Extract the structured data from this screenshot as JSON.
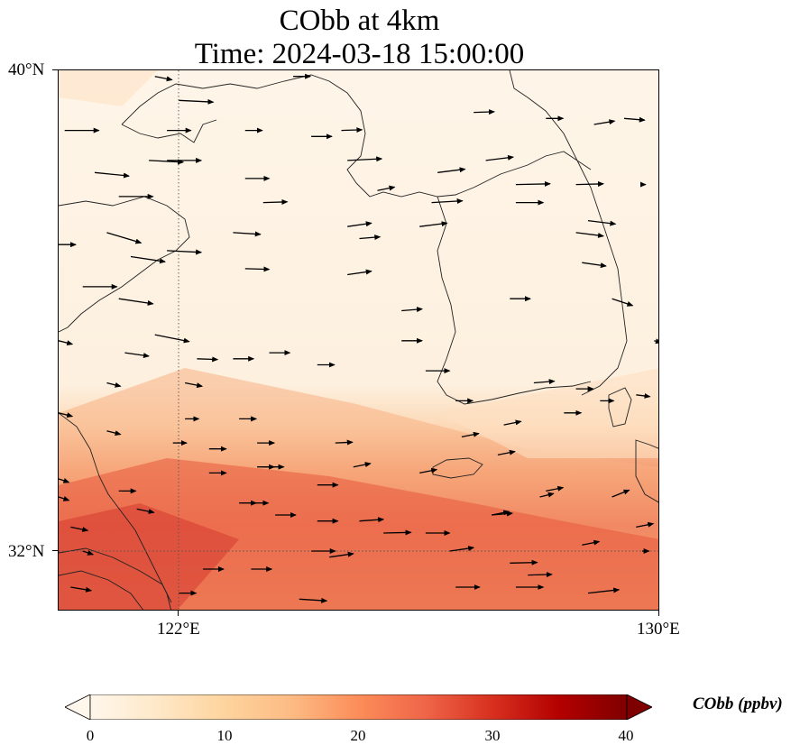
{
  "title": {
    "line1": "CObb at 4km",
    "line2": "Time: 2024-03-18 15:00:00"
  },
  "map": {
    "extent": {
      "lon_min": 120,
      "lon_max": 130,
      "lat_min": 31,
      "lat_max": 40
    },
    "gridlines": {
      "lons": [
        122
      ],
      "lats": [
        32
      ],
      "style": "dotted"
    },
    "lat_labels": [
      "40°N",
      "32°N"
    ],
    "lon_labels": [
      "122°E",
      "130°E"
    ],
    "field_colors": {
      "north": "#fef3e5",
      "south_band": "#e85a3e",
      "southwest": "#d94432"
    }
  },
  "colorbar": {
    "title": "CObb (ppbv)",
    "min": 0,
    "max": 40,
    "ticks": [
      "0",
      "10",
      "20",
      "30",
      "40"
    ],
    "colormap": "OrRd",
    "extend": "both"
  },
  "wind_arrows": [
    {
      "lon": 120.1,
      "lat": 39.0,
      "u": 1,
      "v": 0.0
    },
    {
      "lon": 120.6,
      "lat": 38.3,
      "u": 1,
      "v": -0.1
    },
    {
      "lon": 121.5,
      "lat": 38.5,
      "u": 1,
      "v": -0.05
    },
    {
      "lon": 121.0,
      "lat": 37.9,
      "u": 1,
      "v": 0.0
    },
    {
      "lon": 120.0,
      "lat": 37.1,
      "u": 0.5,
      "v": 0.0
    },
    {
      "lon": 120.8,
      "lat": 37.3,
      "u": 1,
      "v": -0.3
    },
    {
      "lon": 120.4,
      "lat": 36.4,
      "u": 1,
      "v": 0.0
    },
    {
      "lon": 121.2,
      "lat": 36.9,
      "u": 1,
      "v": -0.15
    },
    {
      "lon": 121.0,
      "lat": 36.2,
      "u": 1,
      "v": -0.15
    },
    {
      "lon": 121.8,
      "lat": 37.0,
      "u": 1,
      "v": -0.05
    },
    {
      "lon": 121.1,
      "lat": 35.3,
      "u": 0.7,
      "v": -0.1
    },
    {
      "lon": 121.6,
      "lat": 35.6,
      "u": 1,
      "v": -0.2
    },
    {
      "lon": 121.8,
      "lat": 39.0,
      "u": 0.7,
      "v": 0.0
    },
    {
      "lon": 121.8,
      "lat": 38.5,
      "u": 1,
      "v": 0.0
    },
    {
      "lon": 122.0,
      "lat": 39.5,
      "u": 1,
      "v": -0.05
    },
    {
      "lon": 121.6,
      "lat": 39.9,
      "u": 0.5,
      "v": -0.1
    },
    {
      "lon": 123.1,
      "lat": 39.0,
      "u": 0.5,
      "v": 0.0
    },
    {
      "lon": 123.1,
      "lat": 38.2,
      "u": 0.7,
      "v": 0.0
    },
    {
      "lon": 123.4,
      "lat": 37.8,
      "u": 0.7,
      "v": 0.02
    },
    {
      "lon": 122.9,
      "lat": 37.3,
      "u": 0.8,
      "v": -0.05
    },
    {
      "lon": 123.1,
      "lat": 36.7,
      "u": 0.7,
      "v": -0.02
    },
    {
      "lon": 122.3,
      "lat": 35.2,
      "u": 0.6,
      "v": -0.02
    },
    {
      "lon": 122.9,
      "lat": 35.2,
      "u": 0.6,
      "v": 0.0
    },
    {
      "lon": 123.5,
      "lat": 35.3,
      "u": 0.6,
      "v": 0.0
    },
    {
      "lon": 124.3,
      "lat": 35.1,
      "u": 0.5,
      "v": 0.0
    },
    {
      "lon": 123.9,
      "lat": 39.9,
      "u": 0.5,
      "v": 0.0
    },
    {
      "lon": 124.7,
      "lat": 39.0,
      "u": 0.6,
      "v": 0.02
    },
    {
      "lon": 124.8,
      "lat": 38.5,
      "u": 1,
      "v": 0.05
    },
    {
      "lon": 125.3,
      "lat": 38.0,
      "u": 0.5,
      "v": 0.1
    },
    {
      "lon": 124.8,
      "lat": 37.4,
      "u": 0.7,
      "v": 0.1
    },
    {
      "lon": 126.0,
      "lat": 37.4,
      "u": 0.8,
      "v": 0.1
    },
    {
      "lon": 124.8,
      "lat": 36.6,
      "u": 0.7,
      "v": 0.1
    },
    {
      "lon": 125.7,
      "lat": 36.0,
      "u": 0.6,
      "v": 0.05
    },
    {
      "lon": 126.3,
      "lat": 38.3,
      "u": 0.8,
      "v": 0.1
    },
    {
      "lon": 126.9,
      "lat": 39.3,
      "u": 0.6,
      "v": 0.02
    },
    {
      "lon": 127.1,
      "lat": 38.5,
      "u": 0.8,
      "v": 0.1
    },
    {
      "lon": 127.6,
      "lat": 38.1,
      "u": 1,
      "v": 0.02
    },
    {
      "lon": 127.6,
      "lat": 37.8,
      "u": 0.8,
      "v": 0.0
    },
    {
      "lon": 128.1,
      "lat": 39.2,
      "u": 0.5,
      "v": 0.0
    },
    {
      "lon": 128.9,
      "lat": 39.1,
      "u": 0.6,
      "v": 0.1
    },
    {
      "lon": 128.6,
      "lat": 38.1,
      "u": 0.8,
      "v": 0.02
    },
    {
      "lon": 128.6,
      "lat": 37.3,
      "u": 0.8,
      "v": -0.1
    },
    {
      "lon": 128.7,
      "lat": 36.8,
      "u": 0.7,
      "v": -0.1
    },
    {
      "lon": 129.2,
      "lat": 36.2,
      "u": 0.6,
      "v": -0.2
    },
    {
      "lon": 127.5,
      "lat": 36.2,
      "u": 0.6,
      "v": 0.0
    },
    {
      "lon": 125.7,
      "lat": 35.5,
      "u": 0.6,
      "v": 0.0
    },
    {
      "lon": 126.1,
      "lat": 35.0,
      "u": 0.7,
      "v": 0.0
    },
    {
      "lon": 126.6,
      "lat": 34.5,
      "u": 0.5,
      "v": 0.0
    },
    {
      "lon": 127.4,
      "lat": 34.1,
      "u": 0.5,
      "v": 0.1
    },
    {
      "lon": 126.7,
      "lat": 33.9,
      "u": 0.5,
      "v": 0.1
    },
    {
      "lon": 127.9,
      "lat": 34.8,
      "u": 0.6,
      "v": 0.05
    },
    {
      "lon": 128.4,
      "lat": 34.3,
      "u": 0.5,
      "v": 0.0
    },
    {
      "lon": 129.0,
      "lat": 34.5,
      "u": 0.4,
      "v": 0.0
    },
    {
      "lon": 128.6,
      "lat": 34.7,
      "u": 0.5,
      "v": 0.0
    },
    {
      "lon": 129.6,
      "lat": 34.6,
      "u": 0.4,
      "v": -0.05
    },
    {
      "lon": 127.3,
      "lat": 33.6,
      "u": 0.5,
      "v": 0.1
    },
    {
      "lon": 124.6,
      "lat": 33.8,
      "u": 0.5,
      "v": 0.02
    },
    {
      "lon": 124.9,
      "lat": 33.4,
      "u": 0.5,
      "v": 0.1
    },
    {
      "lon": 126.0,
      "lat": 33.3,
      "u": 0.5,
      "v": 0.1
    },
    {
      "lon": 128.1,
      "lat": 33.0,
      "u": 0.5,
      "v": 0.1
    },
    {
      "lon": 127.2,
      "lat": 32.6,
      "u": 0.5,
      "v": 0.1
    },
    {
      "lon": 128.7,
      "lat": 32.1,
      "u": 0.5,
      "v": 0.1
    },
    {
      "lon": 129.6,
      "lat": 32.4,
      "u": 0.5,
      "v": 0.1
    },
    {
      "lon": 129.2,
      "lat": 32.9,
      "u": 0.5,
      "v": 0.2
    },
    {
      "lon": 128.0,
      "lat": 32.9,
      "u": 0.4,
      "v": 0.1
    },
    {
      "lon": 124.3,
      "lat": 33.1,
      "u": 0.6,
      "v": 0.0
    },
    {
      "lon": 123.4,
      "lat": 33.4,
      "u": 0.6,
      "v": 0.0
    },
    {
      "lon": 123.0,
      "lat": 32.8,
      "u": 0.5,
      "v": 0.0
    },
    {
      "lon": 123.6,
      "lat": 32.6,
      "u": 0.6,
      "v": 0.0
    },
    {
      "lon": 124.3,
      "lat": 32.5,
      "u": 0.6,
      "v": 0.0
    },
    {
      "lon": 125.0,
      "lat": 32.5,
      "u": 0.7,
      "v": 0.05
    },
    {
      "lon": 125.4,
      "lat": 32.3,
      "u": 0.8,
      "v": 0.02
    },
    {
      "lon": 126.1,
      "lat": 32.3,
      "u": 0.7,
      "v": 0.0
    },
    {
      "lon": 127.2,
      "lat": 32.6,
      "u": 0.6,
      "v": 0.05
    },
    {
      "lon": 126.5,
      "lat": 32.0,
      "u": 0.7,
      "v": 0.1
    },
    {
      "lon": 124.5,
      "lat": 31.9,
      "u": 0.7,
      "v": 0.1
    },
    {
      "lon": 124.2,
      "lat": 32.0,
      "u": 0.7,
      "v": 0.0
    },
    {
      "lon": 123.2,
      "lat": 32.8,
      "u": 0.5,
      "v": 0.0
    },
    {
      "lon": 122.5,
      "lat": 33.3,
      "u": 0.5,
      "v": 0.0
    },
    {
      "lon": 121.9,
      "lat": 33.8,
      "u": 0.4,
      "v": 0.0
    },
    {
      "lon": 122.5,
      "lat": 33.7,
      "u": 0.5,
      "v": 0.0
    },
    {
      "lon": 123.3,
      "lat": 33.4,
      "u": 0.5,
      "v": 0.0
    },
    {
      "lon": 121.0,
      "lat": 33.0,
      "u": 0.5,
      "v": 0.0
    },
    {
      "lon": 121.3,
      "lat": 32.7,
      "u": 0.5,
      "v": -0.1
    },
    {
      "lon": 120.0,
      "lat": 33.2,
      "u": 0.3,
      "v": -0.1
    },
    {
      "lon": 120.2,
      "lat": 32.4,
      "u": 0.5,
      "v": -0.1
    },
    {
      "lon": 120.0,
      "lat": 32.9,
      "u": 0.3,
      "v": -0.1
    },
    {
      "lon": 120.4,
      "lat": 32.0,
      "u": 0.3,
      "v": -0.1
    },
    {
      "lon": 120.2,
      "lat": 31.4,
      "u": 0.6,
      "v": -0.1
    },
    {
      "lon": 122.4,
      "lat": 31.7,
      "u": 0.6,
      "v": 0.0
    },
    {
      "lon": 123.2,
      "lat": 31.7,
      "u": 0.6,
      "v": 0.0
    },
    {
      "lon": 122.0,
      "lat": 31.3,
      "u": 0.5,
      "v": 0.0
    },
    {
      "lon": 124.0,
      "lat": 31.2,
      "u": 0.8,
      "v": -0.05
    },
    {
      "lon": 126.6,
      "lat": 31.4,
      "u": 0.7,
      "v": 0.0
    },
    {
      "lon": 127.6,
      "lat": 31.4,
      "u": 0.8,
      "v": 0.0
    },
    {
      "lon": 128.8,
      "lat": 31.3,
      "u": 0.9,
      "v": 0.1
    },
    {
      "lon": 127.5,
      "lat": 31.8,
      "u": 0.8,
      "v": 0.02
    },
    {
      "lon": 127.8,
      "lat": 31.6,
      "u": 0.7,
      "v": 0.02
    },
    {
      "lon": 122.1,
      "lat": 34.8,
      "u": 0.5,
      "v": -0.1
    },
    {
      "lon": 120.8,
      "lat": 34.8,
      "u": 0.4,
      "v": -0.1
    },
    {
      "lon": 120.0,
      "lat": 35.5,
      "u": 0.4,
      "v": -0.1
    },
    {
      "lon": 120.0,
      "lat": 34.3,
      "u": 0.4,
      "v": -0.1
    },
    {
      "lon": 120.8,
      "lat": 34.0,
      "u": 0.4,
      "v": -0.1
    },
    {
      "lon": 122.1,
      "lat": 34.2,
      "u": 0.4,
      "v": 0.0
    },
    {
      "lon": 123.0,
      "lat": 34.2,
      "u": 0.5,
      "v": 0.0
    },
    {
      "lon": 123.3,
      "lat": 33.8,
      "u": 0.5,
      "v": 0.0
    },
    {
      "lon": 126.2,
      "lat": 37.8,
      "u": 0.9,
      "v": 0.05
    },
    {
      "lon": 124.2,
      "lat": 38.9,
      "u": 0.6,
      "v": 0.0
    },
    {
      "lon": 125.0,
      "lat": 37.2,
      "u": 0.6,
      "v": 0.05
    },
    {
      "lon": 129.4,
      "lat": 39.2,
      "u": 0.6,
      "v": -0.05
    },
    {
      "lon": 128.8,
      "lat": 37.5,
      "u": 0.8,
      "v": -0.1
    },
    {
      "lon": 129.7,
      "lat": 38.1,
      "u": 0.1,
      "v": 0.0
    },
    {
      "lon": 129.9,
      "lat": 35.5,
      "u": 0.2,
      "v": -0.05
    },
    {
      "lon": 129.7,
      "lat": 32.0,
      "u": 0.2,
      "v": 0.0
    }
  ]
}
